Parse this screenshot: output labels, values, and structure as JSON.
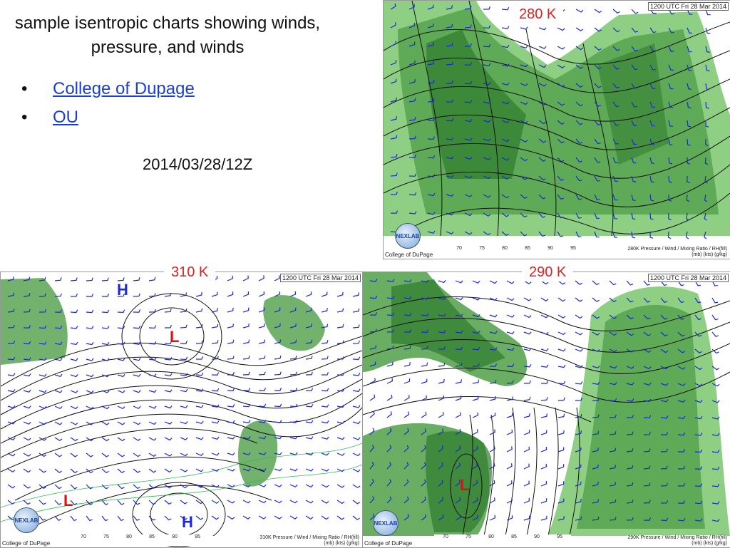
{
  "slide": {
    "title": "sample isentropic charts showing winds, pressure, and winds",
    "links": [
      {
        "label": "College of Dupage"
      },
      {
        "label": "OU"
      }
    ],
    "bullet": "•",
    "date": "2014/03/28/12Z"
  },
  "panels": [
    {
      "id": "280",
      "label": "280 K",
      "stamp": "1200 UTC Fri 28 Mar 2014",
      "credit": "College of DuPage",
      "legend_title": "280K Pressure / Wind / Mixing Ratio / RH(fill)",
      "units": "(mb)     (kts)     (g/kg)",
      "scale": [
        "70",
        "75",
        "80",
        "85",
        "90",
        "95"
      ]
    },
    {
      "id": "310",
      "label": "310 K",
      "stamp": "1200 UTC Fri 28 Mar 2014",
      "credit": "College of DuPage",
      "legend_title": "310K Pressure / Wind / Mixing Ratio / RH(fill)",
      "units": "(mb)     (kts)     (g/kg)",
      "scale": [
        "70",
        "75",
        "80",
        "85",
        "90",
        "95"
      ],
      "markers": [
        "H",
        "L",
        "L",
        "H"
      ]
    },
    {
      "id": "290",
      "label": "290 K",
      "stamp": "1200 UTC Fri 28 Mar 2014",
      "credit": "College of DuPage",
      "legend_title": "290K Pressure / Wind / Mixing Ratio / RH(fill)",
      "units": "(mb)     (kts)     (g/kg)",
      "scale": [
        "70",
        "75",
        "80",
        "85",
        "90",
        "95"
      ],
      "markers": [
        "L"
      ]
    }
  ],
  "logo_text": "NEXLAB",
  "colors": {
    "fill_light": "#8fcf84",
    "fill_mid": "#5aa552",
    "fill_dark": "#2f7a2e",
    "isobar": "#111111",
    "wind_barb": "#1a2ad6",
    "mixing_ratio": "#33bb55",
    "label_red": "#e02020",
    "link_blue": "#1a3fd6"
  }
}
